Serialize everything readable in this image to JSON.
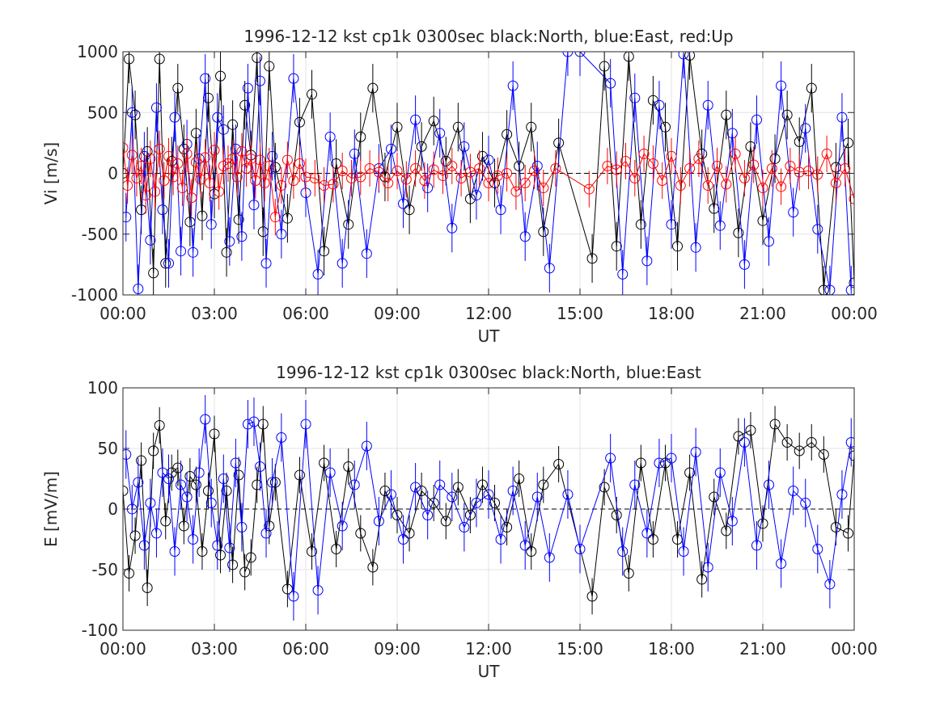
{
  "chart_data": [
    {
      "type": "line",
      "title": "1996-12-12 kst cp1k 0300sec black:North, blue:East, red:Up",
      "xlabel": "UT",
      "ylabel": "Vi [m/s]",
      "xlim_hours": [
        0,
        24
      ],
      "ylim": [
        -1000,
        1000
      ],
      "xticks": [
        "00:00",
        "03:00",
        "06:00",
        "09:00",
        "12:00",
        "15:00",
        "18:00",
        "21:00",
        "00:00"
      ],
      "yticks": [
        -1000,
        -500,
        0,
        500,
        1000
      ],
      "grid": true,
      "series": [
        {
          "name": "North",
          "color": "#000000",
          "x": [
            0.0,
            0.2,
            0.4,
            0.6,
            0.8,
            1.0,
            1.2,
            1.4,
            1.6,
            1.8,
            2.0,
            2.2,
            2.4,
            2.6,
            2.8,
            3.0,
            3.2,
            3.4,
            3.6,
            3.8,
            4.0,
            4.2,
            4.4,
            4.6,
            4.8,
            5.0,
            5.4,
            5.8,
            6.2,
            6.6,
            7.0,
            7.4,
            7.8,
            8.2,
            8.6,
            9.0,
            9.4,
            9.8,
            10.2,
            10.6,
            11.0,
            11.4,
            11.8,
            12.2,
            12.6,
            13.0,
            13.4,
            13.8,
            14.3,
            15.4,
            15.8,
            16.2,
            16.6,
            17.0,
            17.4,
            17.8,
            18.2,
            18.6,
            19.0,
            19.4,
            19.8,
            20.2,
            20.6,
            21.0,
            21.4,
            21.8,
            22.2,
            22.6,
            23.0,
            23.4,
            23.8,
            24.0
          ],
          "values": [
            0,
            940,
            480,
            -300,
            180,
            -820,
            940,
            -740,
            100,
            700,
            200,
            -400,
            330,
            -350,
            620,
            -170,
            800,
            -650,
            400,
            -380,
            560,
            150,
            950,
            -480,
            880,
            50,
            -370,
            420,
            650,
            -640,
            80,
            -420,
            300,
            700,
            -30,
            380,
            -300,
            220,
            430,
            100,
            380,
            -210,
            140,
            -80,
            320,
            60,
            380,
            -480,
            250,
            -700,
            880,
            -600,
            960,
            -420,
            600,
            380,
            -600,
            970,
            160,
            -290,
            480,
            -490,
            220,
            -390,
            120,
            480,
            260,
            700,
            -960,
            50,
            250,
            -900
          ],
          "err": 200
        },
        {
          "name": "East",
          "color": "#0000ff",
          "x": [
            0.1,
            0.3,
            0.5,
            0.7,
            0.9,
            1.1,
            1.3,
            1.5,
            1.7,
            1.9,
            2.1,
            2.3,
            2.5,
            2.7,
            2.9,
            3.1,
            3.3,
            3.5,
            3.7,
            3.9,
            4.1,
            4.3,
            4.5,
            4.7,
            4.9,
            5.2,
            5.6,
            6.0,
            6.4,
            6.8,
            7.2,
            7.6,
            8.0,
            8.4,
            8.8,
            9.2,
            9.6,
            10.0,
            10.4,
            10.8,
            11.2,
            11.6,
            12.0,
            12.4,
            12.8,
            13.2,
            13.6,
            14.0,
            14.6,
            15.0,
            16.0,
            16.4,
            16.8,
            17.2,
            17.6,
            18.0,
            18.4,
            18.8,
            19.2,
            19.6,
            20.0,
            20.4,
            20.8,
            21.2,
            21.6,
            22.0,
            22.4,
            22.8,
            23.2,
            23.6,
            23.9
          ],
          "values": [
            -360,
            500,
            -950,
            140,
            -550,
            540,
            -300,
            -740,
            460,
            -640,
            240,
            -650,
            120,
            780,
            -420,
            460,
            360,
            -560,
            200,
            -520,
            700,
            -260,
            760,
            -740,
            140,
            -500,
            780,
            -160,
            -830,
            300,
            -740,
            160,
            -660,
            40,
            200,
            -250,
            440,
            -120,
            330,
            -450,
            220,
            -180,
            110,
            -300,
            720,
            -520,
            60,
            -780,
            1000,
            1000,
            740,
            -830,
            620,
            -720,
            560,
            -420,
            980,
            -610,
            560,
            -430,
            330,
            -750,
            440,
            -560,
            720,
            -320,
            370,
            -460,
            -960,
            460,
            -960
          ],
          "err": 200
        },
        {
          "name": "Up",
          "color": "#ff0000",
          "x": [
            0.0,
            0.15,
            0.3,
            0.45,
            0.6,
            0.75,
            0.9,
            1.05,
            1.2,
            1.35,
            1.5,
            1.65,
            1.8,
            1.95,
            2.1,
            2.25,
            2.4,
            2.55,
            2.7,
            2.85,
            3.0,
            3.15,
            3.3,
            3.45,
            3.6,
            3.75,
            3.9,
            4.05,
            4.2,
            4.35,
            4.5,
            4.65,
            4.8,
            5.0,
            5.2,
            5.4,
            5.6,
            5.8,
            6.0,
            6.3,
            6.6,
            6.9,
            7.2,
            7.5,
            7.8,
            8.1,
            8.4,
            8.7,
            9.0,
            9.3,
            9.6,
            9.9,
            10.2,
            10.5,
            10.8,
            11.1,
            11.4,
            11.7,
            12.0,
            12.3,
            12.6,
            12.9,
            13.2,
            13.5,
            13.8,
            14.2,
            15.3,
            15.9,
            16.2,
            16.5,
            16.8,
            17.1,
            17.4,
            17.7,
            18.0,
            18.3,
            18.6,
            18.9,
            19.2,
            19.5,
            19.8,
            20.1,
            20.4,
            20.7,
            21.0,
            21.3,
            21.6,
            21.9,
            22.2,
            22.5,
            22.8,
            23.1,
            23.4,
            23.7,
            24.0
          ],
          "values": [
            210,
            -100,
            150,
            -40,
            60,
            -180,
            120,
            -150,
            200,
            -60,
            140,
            -30,
            80,
            -120,
            160,
            -200,
            90,
            -50,
            130,
            -80,
            190,
            -150,
            60,
            80,
            120,
            -30,
            180,
            40,
            120,
            -60,
            110,
            -80,
            60,
            -360,
            -100,
            110,
            -60,
            80,
            -30,
            -40,
            -100,
            -90,
            20,
            -40,
            -30,
            40,
            10,
            -80,
            20,
            -50,
            40,
            -60,
            30,
            -20,
            60,
            -40,
            10,
            40,
            -80,
            -20,
            0,
            -150,
            -80,
            20,
            -120,
            40,
            -130,
            60,
            30,
            100,
            -40,
            160,
            80,
            -60,
            140,
            -100,
            40,
            120,
            -100,
            60,
            -90,
            160,
            -40,
            70,
            -120,
            40,
            -110,
            60,
            10,
            20,
            -10,
            160,
            -80,
            40,
            -210
          ],
          "err": 150
        }
      ]
    },
    {
      "type": "line",
      "title": "1996-12-12 kst cp1k 0300sec black:North, blue:East",
      "xlabel": "UT",
      "ylabel": "E [mV/m]",
      "xlim_hours": [
        0,
        24
      ],
      "ylim": [
        -100,
        100
      ],
      "xticks": [
        "00:00",
        "03:00",
        "06:00",
        "09:00",
        "12:00",
        "15:00",
        "18:00",
        "21:00",
        "00:00"
      ],
      "yticks": [
        -100,
        -50,
        0,
        50,
        100
      ],
      "grid": true,
      "series": [
        {
          "name": "North",
          "color": "#000000",
          "x": [
            0.0,
            0.2,
            0.4,
            0.6,
            0.8,
            1.0,
            1.2,
            1.4,
            1.6,
            1.8,
            2.0,
            2.2,
            2.4,
            2.6,
            2.8,
            3.0,
            3.2,
            3.4,
            3.6,
            3.8,
            4.0,
            4.2,
            4.4,
            4.6,
            4.8,
            5.0,
            5.4,
            5.8,
            6.2,
            6.6,
            7.0,
            7.4,
            7.8,
            8.2,
            8.6,
            9.0,
            9.4,
            9.8,
            10.2,
            10.6,
            11.0,
            11.4,
            11.8,
            12.2,
            12.6,
            13.0,
            13.4,
            13.8,
            14.3,
            15.4,
            15.8,
            16.2,
            16.6,
            17.0,
            17.4,
            17.8,
            18.2,
            18.6,
            19.0,
            19.4,
            19.8,
            20.2,
            20.6,
            21.0,
            21.4,
            21.8,
            22.2,
            22.6,
            23.0,
            23.4,
            23.8,
            24.0
          ],
          "values": [
            15,
            -53,
            -22,
            40,
            -65,
            48,
            69,
            -10,
            30,
            34,
            -14,
            27,
            20,
            -35,
            15,
            62,
            -38,
            15,
            -46,
            28,
            -52,
            -40,
            20,
            70,
            -14,
            22,
            -66,
            28,
            -35,
            38,
            -33,
            35,
            -20,
            -48,
            15,
            -5,
            -20,
            15,
            5,
            -10,
            18,
            -5,
            20,
            5,
            -15,
            25,
            -35,
            20,
            37,
            -72,
            18,
            -5,
            -53,
            38,
            -25,
            38,
            -25,
            30,
            -58,
            10,
            -18,
            60,
            65,
            -12,
            70,
            55,
            48,
            55,
            45,
            -15,
            -20,
            44
          ],
          "err": 15
        },
        {
          "name": "East",
          "color": "#0000ff",
          "x": [
            0.1,
            0.3,
            0.5,
            0.7,
            0.9,
            1.1,
            1.3,
            1.5,
            1.7,
            1.9,
            2.1,
            2.3,
            2.5,
            2.7,
            2.9,
            3.1,
            3.3,
            3.5,
            3.7,
            3.9,
            4.1,
            4.3,
            4.5,
            4.7,
            4.9,
            5.2,
            5.6,
            6.0,
            6.4,
            6.8,
            7.2,
            7.6,
            8.0,
            8.4,
            8.8,
            9.2,
            9.6,
            10.0,
            10.4,
            10.8,
            11.2,
            11.6,
            12.0,
            12.4,
            12.8,
            13.2,
            13.6,
            14.0,
            14.6,
            15.0,
            16.0,
            16.4,
            16.8,
            17.2,
            17.6,
            18.0,
            18.4,
            18.8,
            19.2,
            19.6,
            20.0,
            20.4,
            20.8,
            21.2,
            21.6,
            22.0,
            22.4,
            22.8,
            23.2,
            23.6,
            23.9
          ],
          "values": [
            45,
            0,
            22,
            -30,
            5,
            -20,
            30,
            25,
            -35,
            20,
            10,
            -25,
            30,
            74,
            5,
            -30,
            25,
            -32,
            38,
            -15,
            70,
            72,
            35,
            -20,
            22,
            59,
            -72,
            70,
            -67,
            30,
            -14,
            20,
            52,
            -10,
            12,
            -25,
            18,
            -5,
            20,
            10,
            -15,
            5,
            12,
            -25,
            15,
            -30,
            10,
            -40,
            12,
            -33,
            42,
            -35,
            20,
            -20,
            38,
            42,
            -35,
            47,
            -48,
            30,
            -10,
            55,
            -30,
            20,
            -45,
            15,
            5,
            -33,
            -62,
            12,
            55
          ],
          "err": 20
        }
      ]
    }
  ]
}
